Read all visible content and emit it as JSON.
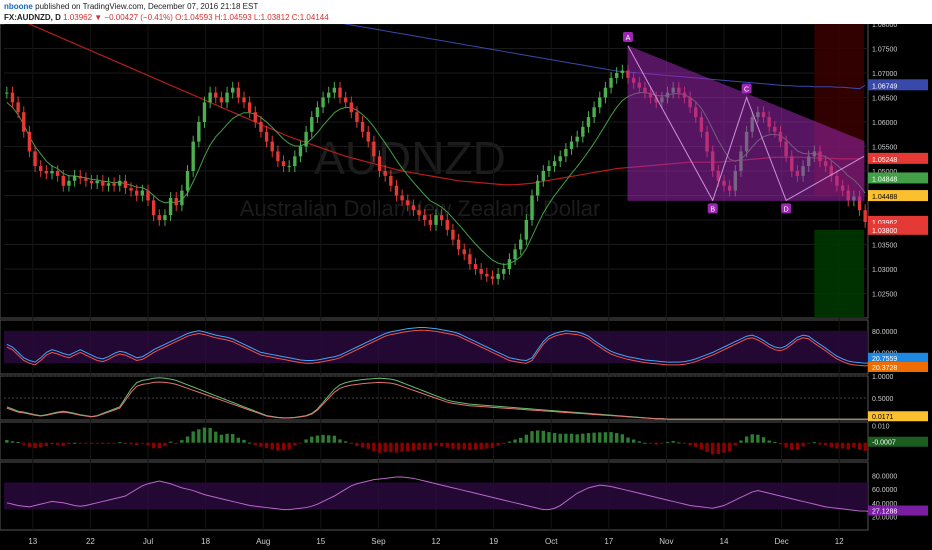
{
  "header": {
    "author": "nboone",
    "published": "published on TradingView.com, December 07, 2016 21:18 EST",
    "symbol": "FX:AUDNZD, D",
    "last": "1.03962",
    "change": "▼ −0.00427 (−0.41%)",
    "open": "O:1.04593",
    "high": "H:1.04593",
    "low": "L:1.03812",
    "close": "C:1.04144"
  },
  "watermark": {
    "ticker": "AUDNZD",
    "name": "Australian Dollar/New Zealand Dollar"
  },
  "colors": {
    "up": "#4caf50",
    "down": "#e53935",
    "pattern": "#9c27b0",
    "ema_fast": "#43a047",
    "ma_slow": "#b71c1c",
    "ma_long": "#3949ab"
  },
  "chart_data": [
    {
      "type": "candlestick",
      "panel": "price",
      "x_tick_labels": [
        "13",
        "22",
        "Jul",
        "18",
        "Aug",
        "15",
        "Sep",
        "12",
        "19",
        "Oct",
        "17",
        "Nov",
        "14",
        "Dec",
        "12"
      ],
      "y_tick_labels": [
        "1.08000",
        "1.07500",
        "1.07000",
        "1.06500",
        "1.06000",
        "1.05500",
        "1.05000",
        "1.04500",
        "1.04000",
        "1.03500",
        "1.03000",
        "1.02500"
      ],
      "ylim": [
        1.02,
        1.08
      ],
      "price_labels": [
        "1.06749",
        "1.05248",
        "1.04848",
        "1.04488",
        "1.03962",
        "1.03800"
      ],
      "pattern_points": [
        {
          "label": "A",
          "price": 1.0755
        },
        {
          "label": "B",
          "price": 1.044
        },
        {
          "label": "C",
          "price": 1.065
        },
        {
          "label": "D",
          "price": 1.044
        }
      ],
      "close": [
        1.066,
        1.064,
        1.062,
        1.058,
        1.054,
        1.051,
        1.05,
        1.0495,
        1.05,
        1.049,
        1.047,
        1.048,
        1.049,
        1.0485,
        1.048,
        1.0475,
        1.048,
        1.047,
        1.0475,
        1.047,
        1.048,
        1.0465,
        1.046,
        1.045,
        1.046,
        1.044,
        1.041,
        1.04,
        1.041,
        1.0445,
        1.043,
        1.046,
        1.05,
        1.056,
        1.06,
        1.064,
        1.066,
        1.065,
        1.064,
        1.066,
        1.067,
        1.065,
        1.064,
        1.062,
        1.06,
        1.058,
        1.056,
        1.054,
        1.052,
        1.051,
        1.051,
        1.053,
        1.055,
        1.058,
        1.061,
        1.063,
        1.065,
        1.066,
        1.067,
        1.065,
        1.064,
        1.062,
        1.06,
        1.058,
        1.056,
        1.053,
        1.05,
        1.049,
        1.047,
        1.045,
        1.044,
        1.043,
        1.042,
        1.041,
        1.04,
        1.039,
        1.041,
        1.04,
        1.038,
        1.036,
        1.034,
        1.033,
        1.031,
        1.03,
        1.029,
        1.0285,
        1.028,
        1.029,
        1.03,
        1.032,
        1.034,
        1.036,
        1.04,
        1.045,
        1.048,
        1.05,
        1.051,
        1.052,
        1.053,
        1.0545,
        1.056,
        1.057,
        1.059,
        1.061,
        1.063,
        1.065,
        1.067,
        1.069,
        1.07,
        1.0705,
        1.069,
        1.068,
        1.067,
        1.066,
        1.065,
        1.064,
        1.065,
        1.066,
        1.067,
        1.066,
        1.065,
        1.063,
        1.061,
        1.058,
        1.054,
        1.05,
        1.048,
        1.047,
        1.046,
        1.05,
        1.054,
        1.058,
        1.061,
        1.062,
        1.061,
        1.059,
        1.058,
        1.056,
        1.053,
        1.05,
        1.049,
        1.051,
        1.053,
        1.054,
        1.052,
        1.051,
        1.049,
        1.047,
        1.046,
        1.044,
        1.0448,
        1.042,
        1.0396
      ],
      "ema_fast": [
        1.064,
        1.063,
        1.0615,
        1.0595,
        1.057,
        1.055,
        1.0535,
        1.052,
        1.051,
        1.0505,
        1.0495,
        1.049,
        1.049,
        1.0488,
        1.0486,
        1.0483,
        1.0482,
        1.0479,
        1.0478,
        1.0476,
        1.0477,
        1.0474,
        1.0471,
        1.0467,
        1.0466,
        1.046,
        1.045,
        1.044,
        1.0435,
        1.0437,
        1.0435,
        1.0441,
        1.0455,
        1.0478,
        1.0503,
        1.053,
        1.0553,
        1.057,
        1.0582,
        1.0595,
        1.0607,
        1.0614,
        1.0619,
        1.0619,
        1.0616,
        1.0609,
        1.06,
        1.0589,
        1.0577,
        1.0565,
        1.0556,
        1.0551,
        1.0551,
        1.0556,
        1.0566,
        1.0578,
        1.0593,
        1.0606,
        1.0619,
        1.0626,
        1.063,
        1.0629,
        1.0624,
        1.0615,
        1.0604,
        1.059,
        1.0573,
        1.0557,
        1.054,
        1.0522,
        1.0506,
        1.0491,
        1.0477,
        1.0464,
        1.0451,
        1.0439,
        1.0433,
        1.0426,
        1.0416,
        1.0404,
        1.0391,
        1.0378,
        1.0364,
        1.0351,
        1.0339,
        1.0328,
        1.0318,
        1.0312,
        1.0309,
        1.0311,
        1.0317,
        1.0325,
        1.0342,
        1.0366,
        1.0391,
        1.0414,
        1.0433,
        1.045,
        1.0465,
        1.048,
        1.0495,
        1.0509,
        1.0524,
        1.054,
        1.0557,
        1.0575,
        1.0594,
        1.0613,
        1.063,
        1.0644,
        1.0652,
        1.0657,
        1.066,
        1.066,
        1.0658,
        1.0654,
        1.0653,
        1.0654,
        1.0658,
        1.0658,
        1.0656,
        1.065,
        1.0641,
        1.0628,
        1.0608,
        1.0585,
        1.0562,
        1.0542,
        1.0524,
        1.052,
        1.0524,
        1.0535,
        1.0549,
        1.0562,
        1.057,
        1.0574,
        1.0575,
        1.0572,
        1.0564,
        1.0552,
        1.0541,
        1.0536,
        1.0535,
        1.0536,
        1.0533,
        1.0529,
        1.0522,
        1.0512,
        1.0502,
        1.049,
        1.0482,
        1.047,
        1.0455
      ],
      "ma_slow": [
        1.082,
        1.0815,
        1.081,
        1.0805,
        1.08,
        1.0795,
        1.079,
        1.0785,
        1.078,
        1.0775,
        1.077,
        1.0765,
        1.076,
        1.0755,
        1.075,
        1.0745,
        1.074,
        1.0735,
        1.073,
        1.0725,
        1.072,
        1.0715,
        1.071,
        1.0705,
        1.07,
        1.0695,
        1.069,
        1.0685,
        1.068,
        1.0675,
        1.067,
        1.0665,
        1.066,
        1.0655,
        1.065,
        1.0645,
        1.064,
        1.0635,
        1.063,
        1.0625,
        1.062,
        1.0615,
        1.061,
        1.0605,
        1.06,
        1.0595,
        1.059,
        1.0585,
        1.058,
        1.0575,
        1.057,
        1.0566,
        1.0562,
        1.0558,
        1.0554,
        1.055,
        1.0546,
        1.0542,
        1.0538,
        1.0534,
        1.053,
        1.0527,
        1.0524,
        1.0521,
        1.0518,
        1.0515,
        1.0512,
        1.0509,
        1.0506,
        1.0503,
        1.05,
        1.0498,
        1.0496,
        1.0494,
        1.0492,
        1.049,
        1.0488,
        1.0486,
        1.0484,
        1.0482,
        1.048,
        1.0479,
        1.0478,
        1.0477,
        1.0476,
        1.0475,
        1.0474,
        1.0473,
        1.0472,
        1.0472,
        1.0472,
        1.0473,
        1.0474,
        1.0475,
        1.0477,
        1.0479,
        1.0481,
        1.0483,
        1.0485,
        1.0487,
        1.0489,
        1.0491,
        1.0493,
        1.0495,
        1.0497,
        1.0499,
        1.0501,
        1.0503,
        1.0505,
        1.0506,
        1.0507,
        1.0508,
        1.0509,
        1.051,
        1.0511,
        1.0512,
        1.0513,
        1.0514,
        1.0515,
        1.0516,
        1.0517,
        1.0518,
        1.0518,
        1.0518,
        1.0518,
        1.0518,
        1.0518,
        1.0519,
        1.052,
        1.0521,
        1.0522,
        1.0523,
        1.0524,
        1.0525,
        1.0526,
        1.0527,
        1.0528,
        1.0528,
        1.0528,
        1.0528,
        1.0528,
        1.0528,
        1.0527,
        1.0527,
        1.0526,
        1.0526,
        1.0526,
        1.0525,
        1.0525,
        1.0525,
        1.0525,
        1.0525
      ],
      "ma_long": [
        1.092,
        1.0918,
        1.0916,
        1.0914,
        1.0912,
        1.091,
        1.0908,
        1.0906,
        1.0904,
        1.0902,
        1.09,
        1.0898,
        1.0896,
        1.0894,
        1.0892,
        1.089,
        1.0888,
        1.0886,
        1.0884,
        1.0882,
        1.088,
        1.0878,
        1.0876,
        1.0874,
        1.0872,
        1.087,
        1.0868,
        1.0866,
        1.0864,
        1.0862,
        1.086,
        1.0858,
        1.0856,
        1.0854,
        1.0852,
        1.085,
        1.0848,
        1.0846,
        1.0844,
        1.0842,
        1.084,
        1.0838,
        1.0836,
        1.0834,
        1.0832,
        1.083,
        1.0828,
        1.0826,
        1.0824,
        1.0822,
        1.082,
        1.0818,
        1.0816,
        1.0814,
        1.0812,
        1.081,
        1.0808,
        1.0806,
        1.0804,
        1.0802,
        1.08,
        1.0798,
        1.0796,
        1.0794,
        1.0792,
        1.079,
        1.0788,
        1.0786,
        1.0784,
        1.0782,
        1.078,
        1.0778,
        1.0776,
        1.0774,
        1.0772,
        1.077,
        1.0768,
        1.0766,
        1.0764,
        1.0762,
        1.076,
        1.0758,
        1.0756,
        1.0754,
        1.0752,
        1.075,
        1.0748,
        1.0746,
        1.0744,
        1.0742,
        1.074,
        1.0738,
        1.0736,
        1.0734,
        1.0732,
        1.073,
        1.0728,
        1.0726,
        1.0724,
        1.0722,
        1.072,
        1.0718,
        1.0716,
        1.0714,
        1.0712,
        1.071,
        1.0708,
        1.0706,
        1.0704,
        1.0703,
        1.0702,
        1.0701,
        1.07,
        1.0699,
        1.0698,
        1.0697,
        1.0696,
        1.0695,
        1.0694,
        1.0693,
        1.0692,
        1.0691,
        1.069,
        1.0689,
        1.0688,
        1.0687,
        1.0686,
        1.0685,
        1.0684,
        1.0683,
        1.0682,
        1.0681,
        1.068,
        1.0679,
        1.0678,
        1.0677,
        1.0676,
        1.0675,
        1.0674,
        1.0674,
        1.0673,
        1.0673,
        1.0673,
        1.0672,
        1.0672,
        1.0672,
        1.0672,
        1.0671,
        1.0671,
        1.067,
        1.0669,
        1.0668,
        1.0675
      ]
    },
    {
      "type": "line",
      "panel": "stoch",
      "y_tick_labels": [
        "80.0000",
        "40.0000"
      ],
      "last_labels": [
        "20.7559",
        "20.3728"
      ],
      "ylim": [
        0,
        100
      ],
      "k": [
        55,
        50,
        40,
        30,
        25,
        22,
        30,
        40,
        45,
        42,
        38,
        35,
        40,
        45,
        40,
        35,
        30,
        28,
        32,
        38,
        42,
        40,
        35,
        30,
        32,
        38,
        45,
        50,
        55,
        60,
        65,
        70,
        75,
        78,
        80,
        78,
        75,
        72,
        70,
        68,
        65,
        60,
        55,
        50,
        45,
        40,
        38,
        36,
        34,
        32,
        30,
        28,
        26,
        25,
        25,
        26,
        28,
        30,
        32,
        35,
        40,
        45,
        50,
        55,
        60,
        65,
        70,
        75,
        78,
        80,
        82,
        84,
        85,
        86,
        86,
        85,
        84,
        82,
        80,
        78,
        75,
        70,
        65,
        60,
        55,
        50,
        45,
        40,
        35,
        30,
        28,
        26,
        25,
        30,
        45,
        60,
        70,
        75,
        78,
        80,
        79,
        78,
        75,
        70,
        62,
        55,
        48,
        42,
        38,
        35,
        32,
        30,
        28,
        26,
        25,
        24,
        23,
        22,
        22,
        22,
        23,
        25,
        28,
        32,
        36,
        40,
        45,
        50,
        55,
        60,
        65,
        70,
        72,
        68,
        62,
        55,
        50,
        48,
        52,
        60,
        68,
        72,
        70,
        62,
        55,
        48,
        40,
        33,
        28,
        24,
        22,
        21,
        20,
        21
      ]
    },
    {
      "type": "line",
      "panel": "stoch_rsi",
      "y_tick_labels": [
        "1.0000",
        "0.5000"
      ],
      "last_labels": [
        "0.0171"
      ],
      "ylim": [
        0,
        1
      ],
      "k": [
        0.3,
        0.25,
        0.2,
        0.18,
        0.15,
        0.12,
        0.1,
        0.12,
        0.15,
        0.18,
        0.2,
        0.18,
        0.15,
        0.12,
        0.1,
        0.08,
        0.1,
        0.15,
        0.2,
        0.25,
        0.3,
        0.5,
        0.7,
        0.85,
        0.9,
        0.92,
        0.95,
        0.96,
        0.95,
        0.93,
        0.9,
        0.85,
        0.8,
        0.75,
        0.7,
        0.65,
        0.6,
        0.55,
        0.5,
        0.45,
        0.4,
        0.35,
        0.3,
        0.25,
        0.2,
        0.15,
        0.1,
        0.08,
        0.06,
        0.05,
        0.05,
        0.06,
        0.08,
        0.1,
        0.15,
        0.25,
        0.4,
        0.55,
        0.7,
        0.8,
        0.85,
        0.88,
        0.9,
        0.92,
        0.93,
        0.94,
        0.95,
        0.94,
        0.93,
        0.9,
        0.85,
        0.8,
        0.75,
        0.7,
        0.65,
        0.6,
        0.55,
        0.5,
        0.45,
        0.42,
        0.4,
        0.38,
        0.36,
        0.35,
        0.34,
        0.33,
        0.32,
        0.31,
        0.3,
        0.29,
        0.28,
        0.27,
        0.26,
        0.25,
        0.24,
        0.23,
        0.22,
        0.21,
        0.2,
        0.19,
        0.18,
        0.17,
        0.16,
        0.15,
        0.14,
        0.13,
        0.12,
        0.11,
        0.1,
        0.09,
        0.08,
        0.07,
        0.06,
        0.05,
        0.04,
        0.03,
        0.03,
        0.02,
        0.02,
        0.02,
        0.02,
        0.02,
        0.02,
        0.02,
        0.02,
        0.02,
        0.02,
        0.02,
        0.02,
        0.02,
        0.02,
        0.02,
        0.02,
        0.02,
        0.02,
        0.02,
        0.02,
        0.02,
        0.02,
        0.02,
        0.02,
        0.02,
        0.02,
        0.02,
        0.02,
        0.02,
        0.02,
        0.02,
        0.02,
        0.02,
        0.02,
        0.02,
        0.02,
        0.02,
        0.02,
        0.02,
        0.02
      ]
    },
    {
      "type": "histogram",
      "panel": "macd",
      "y_tick_labels": [
        "0.010"
      ],
      "last_labels": [
        "-0.0007"
      ],
      "ylim": [
        -0.01,
        0.012
      ]
    },
    {
      "type": "line",
      "panel": "rsi",
      "y_tick_labels": [
        "80.0000",
        "60.0000",
        "40.0000",
        "20.0000"
      ],
      "last_labels": [
        "27.1288"
      ],
      "ylim": [
        0,
        100
      ],
      "values": [
        40,
        38,
        36,
        35,
        34,
        36,
        38,
        40,
        42,
        41,
        40,
        38,
        36,
        35,
        36,
        38,
        40,
        42,
        44,
        46,
        48,
        50,
        55,
        60,
        65,
        68,
        70,
        72,
        70,
        68,
        65,
        62,
        60,
        58,
        55,
        52,
        50,
        48,
        46,
        44,
        42,
        40,
        38,
        36,
        35,
        34,
        33,
        32,
        31,
        30,
        30,
        31,
        32,
        33,
        35,
        38,
        42,
        46,
        50,
        55,
        60,
        65,
        68,
        70,
        72,
        74,
        75,
        76,
        77,
        78,
        78,
        77,
        76,
        74,
        72,
        70,
        68,
        66,
        64,
        62,
        60,
        58,
        56,
        54,
        52,
        50,
        48,
        46,
        44,
        42,
        40,
        38,
        36,
        34,
        32,
        30,
        30,
        32,
        36,
        42,
        48,
        54,
        58,
        62,
        64,
        66,
        65,
        64,
        62,
        60,
        58,
        56,
        54,
        52,
        50,
        48,
        46,
        44,
        42,
        40,
        38,
        36,
        35,
        34,
        33,
        32,
        34,
        36,
        40,
        44,
        48,
        52,
        56,
        58,
        56,
        54,
        52,
        50,
        48,
        46,
        44,
        42,
        40,
        38,
        36,
        34,
        33,
        32,
        31,
        30,
        29,
        28,
        28,
        27
      ]
    }
  ]
}
